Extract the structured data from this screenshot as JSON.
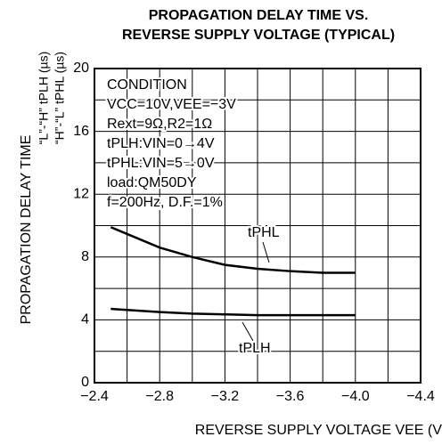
{
  "chart_data": {
    "type": "line",
    "title": [
      "PROPAGATION DELAY TIME VS.",
      "REVERSE SUPPLY VOLTAGE (TYPICAL)"
    ],
    "y_label": [
      "PROPAGATION DELAY TIME",
      "“L”-“H”  tPLH (µs)",
      "“H”-“L”  tPHL (µs)"
    ],
    "x_label": "REVERSE SUPPLY VOLTAGE   VEE (V)",
    "conditions": [
      "CONDITION",
      "VCC=10V,VEE=−3V",
      "Rext=9Ω,R2=1Ω",
      "tPLH:VIN=0→4V",
      "tPHL:VIN=5→0V",
      "load:QM50DY",
      "f=200Hz, D.F.=1%"
    ],
    "xlim": [
      -2.4,
      -4.4
    ],
    "xticks": [
      {
        "value": -2.4,
        "label": "−2.4"
      },
      {
        "value": -2.8,
        "label": "−2.8"
      },
      {
        "value": -3.2,
        "label": "−3.2"
      },
      {
        "value": -3.6,
        "label": "−3.6"
      },
      {
        "value": -4.0,
        "label": "−4.0"
      },
      {
        "value": -4.4,
        "label": "−4.4"
      }
    ],
    "ylim": [
      0,
      20
    ],
    "yticks": [
      0,
      4,
      8,
      12,
      16,
      20
    ],
    "grid": true,
    "x": [
      -2.5,
      -2.8,
      -3.0,
      -3.2,
      -3.4,
      -3.6,
      -3.8,
      -4.0
    ],
    "series": [
      {
        "name": "tPHL",
        "color": "#000000",
        "values": [
          9.9,
          8.6,
          8.0,
          7.5,
          7.25,
          7.1,
          7.0,
          7.0
        ]
      },
      {
        "name": "tPLH",
        "color": "#000000",
        "values": [
          4.7,
          4.5,
          4.4,
          4.35,
          4.3,
          4.3,
          4.3,
          4.3
        ]
      }
    ]
  }
}
